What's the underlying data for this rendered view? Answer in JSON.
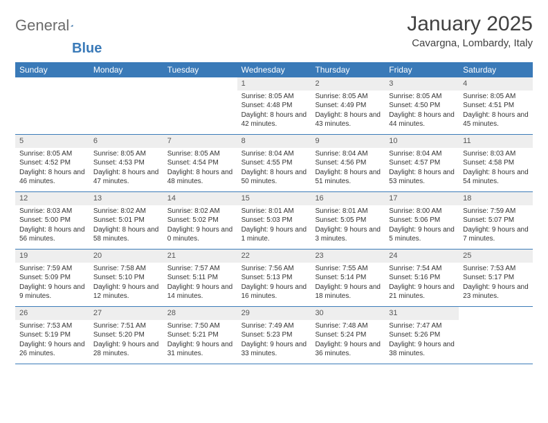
{
  "logo": {
    "text_left": "General",
    "text_right": "Blue",
    "color_gray": "#6b6b6b",
    "color_blue": "#3a7ab8"
  },
  "header": {
    "title": "January 2025",
    "location": "Cavargna, Lombardy, Italy"
  },
  "colors": {
    "header_bg": "#3a7ab8",
    "header_text": "#ffffff",
    "daynum_bg": "#eeeeee",
    "border": "#3a7ab8",
    "body_text": "#333333"
  },
  "day_names": [
    "Sunday",
    "Monday",
    "Tuesday",
    "Wednesday",
    "Thursday",
    "Friday",
    "Saturday"
  ],
  "weeks": [
    [
      {
        "n": "",
        "sr": "",
        "ss": "",
        "dl": ""
      },
      {
        "n": "",
        "sr": "",
        "ss": "",
        "dl": ""
      },
      {
        "n": "",
        "sr": "",
        "ss": "",
        "dl": ""
      },
      {
        "n": "1",
        "sr": "Sunrise: 8:05 AM",
        "ss": "Sunset: 4:48 PM",
        "dl": "Daylight: 8 hours and 42 minutes."
      },
      {
        "n": "2",
        "sr": "Sunrise: 8:05 AM",
        "ss": "Sunset: 4:49 PM",
        "dl": "Daylight: 8 hours and 43 minutes."
      },
      {
        "n": "3",
        "sr": "Sunrise: 8:05 AM",
        "ss": "Sunset: 4:50 PM",
        "dl": "Daylight: 8 hours and 44 minutes."
      },
      {
        "n": "4",
        "sr": "Sunrise: 8:05 AM",
        "ss": "Sunset: 4:51 PM",
        "dl": "Daylight: 8 hours and 45 minutes."
      }
    ],
    [
      {
        "n": "5",
        "sr": "Sunrise: 8:05 AM",
        "ss": "Sunset: 4:52 PM",
        "dl": "Daylight: 8 hours and 46 minutes."
      },
      {
        "n": "6",
        "sr": "Sunrise: 8:05 AM",
        "ss": "Sunset: 4:53 PM",
        "dl": "Daylight: 8 hours and 47 minutes."
      },
      {
        "n": "7",
        "sr": "Sunrise: 8:05 AM",
        "ss": "Sunset: 4:54 PM",
        "dl": "Daylight: 8 hours and 48 minutes."
      },
      {
        "n": "8",
        "sr": "Sunrise: 8:04 AM",
        "ss": "Sunset: 4:55 PM",
        "dl": "Daylight: 8 hours and 50 minutes."
      },
      {
        "n": "9",
        "sr": "Sunrise: 8:04 AM",
        "ss": "Sunset: 4:56 PM",
        "dl": "Daylight: 8 hours and 51 minutes."
      },
      {
        "n": "10",
        "sr": "Sunrise: 8:04 AM",
        "ss": "Sunset: 4:57 PM",
        "dl": "Daylight: 8 hours and 53 minutes."
      },
      {
        "n": "11",
        "sr": "Sunrise: 8:03 AM",
        "ss": "Sunset: 4:58 PM",
        "dl": "Daylight: 8 hours and 54 minutes."
      }
    ],
    [
      {
        "n": "12",
        "sr": "Sunrise: 8:03 AM",
        "ss": "Sunset: 5:00 PM",
        "dl": "Daylight: 8 hours and 56 minutes."
      },
      {
        "n": "13",
        "sr": "Sunrise: 8:02 AM",
        "ss": "Sunset: 5:01 PM",
        "dl": "Daylight: 8 hours and 58 minutes."
      },
      {
        "n": "14",
        "sr": "Sunrise: 8:02 AM",
        "ss": "Sunset: 5:02 PM",
        "dl": "Daylight: 9 hours and 0 minutes."
      },
      {
        "n": "15",
        "sr": "Sunrise: 8:01 AM",
        "ss": "Sunset: 5:03 PM",
        "dl": "Daylight: 9 hours and 1 minute."
      },
      {
        "n": "16",
        "sr": "Sunrise: 8:01 AM",
        "ss": "Sunset: 5:05 PM",
        "dl": "Daylight: 9 hours and 3 minutes."
      },
      {
        "n": "17",
        "sr": "Sunrise: 8:00 AM",
        "ss": "Sunset: 5:06 PM",
        "dl": "Daylight: 9 hours and 5 minutes."
      },
      {
        "n": "18",
        "sr": "Sunrise: 7:59 AM",
        "ss": "Sunset: 5:07 PM",
        "dl": "Daylight: 9 hours and 7 minutes."
      }
    ],
    [
      {
        "n": "19",
        "sr": "Sunrise: 7:59 AM",
        "ss": "Sunset: 5:09 PM",
        "dl": "Daylight: 9 hours and 9 minutes."
      },
      {
        "n": "20",
        "sr": "Sunrise: 7:58 AM",
        "ss": "Sunset: 5:10 PM",
        "dl": "Daylight: 9 hours and 12 minutes."
      },
      {
        "n": "21",
        "sr": "Sunrise: 7:57 AM",
        "ss": "Sunset: 5:11 PM",
        "dl": "Daylight: 9 hours and 14 minutes."
      },
      {
        "n": "22",
        "sr": "Sunrise: 7:56 AM",
        "ss": "Sunset: 5:13 PM",
        "dl": "Daylight: 9 hours and 16 minutes."
      },
      {
        "n": "23",
        "sr": "Sunrise: 7:55 AM",
        "ss": "Sunset: 5:14 PM",
        "dl": "Daylight: 9 hours and 18 minutes."
      },
      {
        "n": "24",
        "sr": "Sunrise: 7:54 AM",
        "ss": "Sunset: 5:16 PM",
        "dl": "Daylight: 9 hours and 21 minutes."
      },
      {
        "n": "25",
        "sr": "Sunrise: 7:53 AM",
        "ss": "Sunset: 5:17 PM",
        "dl": "Daylight: 9 hours and 23 minutes."
      }
    ],
    [
      {
        "n": "26",
        "sr": "Sunrise: 7:53 AM",
        "ss": "Sunset: 5:19 PM",
        "dl": "Daylight: 9 hours and 26 minutes."
      },
      {
        "n": "27",
        "sr": "Sunrise: 7:51 AM",
        "ss": "Sunset: 5:20 PM",
        "dl": "Daylight: 9 hours and 28 minutes."
      },
      {
        "n": "28",
        "sr": "Sunrise: 7:50 AM",
        "ss": "Sunset: 5:21 PM",
        "dl": "Daylight: 9 hours and 31 minutes."
      },
      {
        "n": "29",
        "sr": "Sunrise: 7:49 AM",
        "ss": "Sunset: 5:23 PM",
        "dl": "Daylight: 9 hours and 33 minutes."
      },
      {
        "n": "30",
        "sr": "Sunrise: 7:48 AM",
        "ss": "Sunset: 5:24 PM",
        "dl": "Daylight: 9 hours and 36 minutes."
      },
      {
        "n": "31",
        "sr": "Sunrise: 7:47 AM",
        "ss": "Sunset: 5:26 PM",
        "dl": "Daylight: 9 hours and 38 minutes."
      },
      {
        "n": "",
        "sr": "",
        "ss": "",
        "dl": ""
      }
    ]
  ]
}
